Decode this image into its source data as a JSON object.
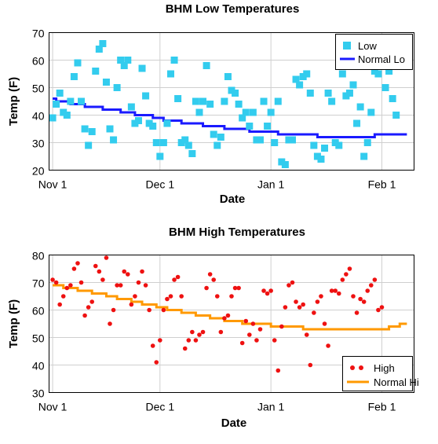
{
  "chart_data": [
    {
      "id": "low",
      "type": "scatter+line",
      "title": "BHM Low Temperatures",
      "xlabel": "Date",
      "ylabel": "Temp (F)",
      "ylim": [
        20,
        70
      ],
      "yticks": [
        20,
        30,
        40,
        50,
        60,
        70
      ],
      "xlim": [
        "2011-10-31",
        "2012-02-10"
      ],
      "xticks": [
        {
          "label": "Nov 1",
          "date": "2011-11-01"
        },
        {
          "label": "Dec 1",
          "date": "2011-12-01"
        },
        {
          "label": "Jan 1",
          "date": "2012-01-01"
        },
        {
          "label": "Feb 1",
          "date": "2012-02-01"
        }
      ],
      "grid": true,
      "legend_position": "top-right",
      "series": [
        {
          "name": "Low",
          "kind": "scatter",
          "marker": "square",
          "color": "#33ccee",
          "start_date": "2011-11-01",
          "values": [
            39,
            44,
            48,
            41,
            40,
            45,
            54,
            59,
            45,
            35,
            29,
            34,
            56,
            64,
            66,
            52,
            35,
            31,
            50,
            60,
            58,
            60,
            43,
            37,
            38,
            57,
            47,
            37,
            36,
            30,
            25,
            30,
            37,
            55,
            60,
            46,
            30,
            31,
            29,
            26,
            45,
            41,
            45,
            58,
            44,
            33,
            29,
            32,
            45,
            54,
            49,
            48,
            44,
            39,
            41,
            36,
            41,
            31,
            31,
            45,
            36,
            41,
            30,
            45,
            23,
            22,
            31,
            31,
            53,
            51,
            54,
            55,
            48,
            29,
            25,
            24,
            28,
            48,
            45,
            30,
            29,
            55,
            47,
            48,
            51,
            37,
            43,
            25,
            30,
            41,
            56,
            55,
            59,
            50,
            56,
            46,
            40
          ]
        },
        {
          "name": "Normal Lo",
          "kind": "step",
          "color": "#1a1aff",
          "points": [
            {
              "date": "2011-11-01",
              "value": 46
            },
            {
              "date": "2011-11-02",
              "value": 45
            },
            {
              "date": "2011-11-06",
              "value": 44
            },
            {
              "date": "2011-11-10",
              "value": 43
            },
            {
              "date": "2011-11-15",
              "value": 42
            },
            {
              "date": "2011-11-20",
              "value": 41
            },
            {
              "date": "2011-11-24",
              "value": 40
            },
            {
              "date": "2011-11-29",
              "value": 39
            },
            {
              "date": "2011-12-02",
              "value": 38
            },
            {
              "date": "2011-12-07",
              "value": 37
            },
            {
              "date": "2011-12-13",
              "value": 36
            },
            {
              "date": "2011-12-19",
              "value": 35
            },
            {
              "date": "2011-12-26",
              "value": 34
            },
            {
              "date": "2012-01-03",
              "value": 33
            },
            {
              "date": "2012-01-14",
              "value": 32
            },
            {
              "date": "2012-01-30",
              "value": 33
            },
            {
              "date": "2012-02-08",
              "value": 33
            }
          ]
        }
      ]
    },
    {
      "id": "high",
      "type": "scatter+line",
      "title": "BHM High Temperatures",
      "xlabel": "Date",
      "ylabel": "Temp (F)",
      "ylim": [
        30,
        80
      ],
      "yticks": [
        30,
        40,
        50,
        60,
        70,
        80
      ],
      "xlim": [
        "2011-10-31",
        "2012-02-10"
      ],
      "xticks": [
        {
          "label": "Nov 1",
          "date": "2011-11-01"
        },
        {
          "label": "Dec 1",
          "date": "2011-12-01"
        },
        {
          "label": "Jan 1",
          "date": "2012-01-01"
        },
        {
          "label": "Feb 1",
          "date": "2012-02-01"
        }
      ],
      "grid": true,
      "legend_position": "bottom-right",
      "series": [
        {
          "name": "High",
          "kind": "scatter",
          "marker": "circle",
          "color": "#ee1111",
          "start_date": "2011-11-01",
          "values": [
            71,
            70,
            62,
            65,
            68,
            69,
            75,
            77,
            70,
            58,
            61,
            63,
            76,
            74,
            71,
            79,
            55,
            60,
            69,
            69,
            74,
            73,
            62,
            65,
            70,
            74,
            69,
            60,
            47,
            41,
            49,
            60,
            64,
            65,
            71,
            72,
            65,
            46,
            49,
            52,
            49,
            51,
            52,
            68,
            73,
            71,
            65,
            52,
            57,
            58,
            65,
            68,
            68,
            48,
            56,
            51,
            55,
            49,
            53,
            67,
            66,
            67,
            49,
            38,
            54,
            61,
            69,
            70,
            63,
            61,
            62,
            51,
            40,
            59,
            63,
            65,
            55,
            47,
            67,
            67,
            66,
            71,
            73,
            75,
            65,
            59,
            64,
            63,
            67,
            69,
            71,
            60,
            61
          ]
        },
        {
          "name": "Normal Hi",
          "kind": "step",
          "color": "#ff9900",
          "points": [
            {
              "date": "2011-11-01",
              "value": 69
            },
            {
              "date": "2011-11-04",
              "value": 68
            },
            {
              "date": "2011-11-08",
              "value": 67
            },
            {
              "date": "2011-11-12",
              "value": 66
            },
            {
              "date": "2011-11-16",
              "value": 65
            },
            {
              "date": "2011-11-19",
              "value": 64
            },
            {
              "date": "2011-11-23",
              "value": 63
            },
            {
              "date": "2011-11-26",
              "value": 62
            },
            {
              "date": "2011-11-30",
              "value": 61
            },
            {
              "date": "2011-12-03",
              "value": 60
            },
            {
              "date": "2011-12-07",
              "value": 59
            },
            {
              "date": "2011-12-11",
              "value": 58
            },
            {
              "date": "2011-12-15",
              "value": 57
            },
            {
              "date": "2011-12-19",
              "value": 56
            },
            {
              "date": "2011-12-24",
              "value": 55
            },
            {
              "date": "2012-01-01",
              "value": 54
            },
            {
              "date": "2012-01-10",
              "value": 53
            },
            {
              "date": "2012-01-25",
              "value": 53
            },
            {
              "date": "2012-02-03",
              "value": 54
            },
            {
              "date": "2012-02-06",
              "value": 55
            },
            {
              "date": "2012-02-08",
              "value": 55
            }
          ]
        }
      ]
    }
  ]
}
